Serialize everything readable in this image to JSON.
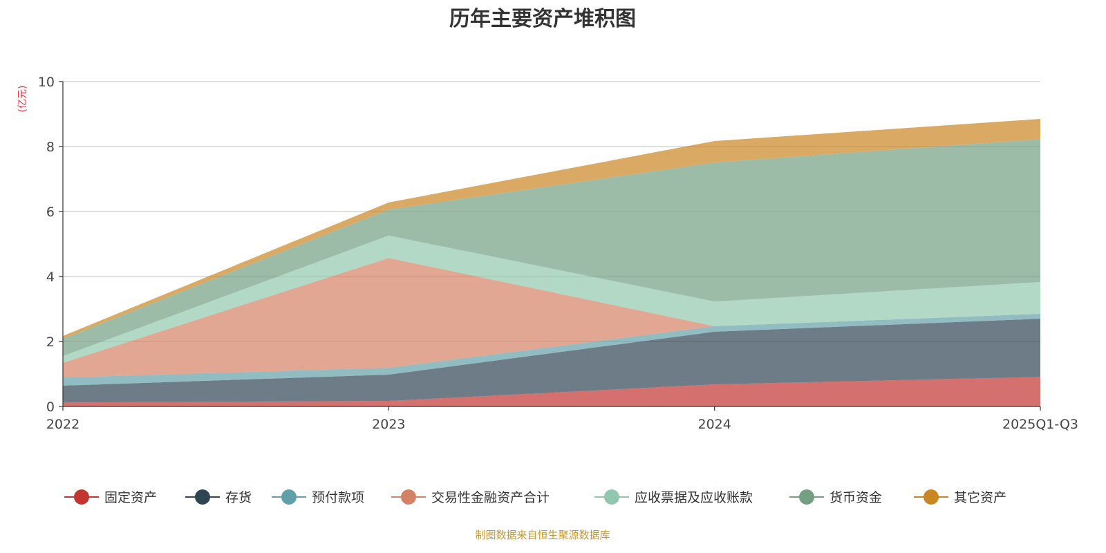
{
  "chart_data": {
    "type": "area",
    "stacked": true,
    "title": "历年主要资产堆积图",
    "ylabel": "(亿元)",
    "xlabel": "",
    "ylim": [
      0,
      10
    ],
    "yticks": [
      0,
      2,
      4,
      6,
      8,
      10
    ],
    "grid": true,
    "legend_position": "bottom",
    "categories": [
      "2022",
      "2023",
      "2024",
      "2025Q1-Q3"
    ],
    "series": [
      {
        "name": "固定资产",
        "color": "#c23531",
        "values": [
          0.12,
          0.17,
          0.68,
          0.91
        ]
      },
      {
        "name": "存货",
        "color": "#2f4554",
        "values": [
          0.52,
          0.81,
          1.62,
          1.79
        ]
      },
      {
        "name": "预付款项",
        "color": "#61a0a8",
        "values": [
          0.25,
          0.21,
          0.17,
          0.15
        ]
      },
      {
        "name": "交易性金融资产合计",
        "color": "#d48265",
        "values": [
          0.45,
          3.38,
          0,
          0
        ]
      },
      {
        "name": "应收票据及应收账款",
        "color": "#91c7ae",
        "values": [
          0.21,
          0.69,
          0.76,
          0.98
        ]
      },
      {
        "name": "货币资金",
        "color": "#749f83",
        "values": [
          0.53,
          0.8,
          4.28,
          4.4
        ]
      },
      {
        "name": "其它资产",
        "color": "#ca8622",
        "values": [
          0.09,
          0.22,
          0.66,
          0.62
        ]
      }
    ],
    "footer": "制图数据来自恒生聚源数据库"
  }
}
